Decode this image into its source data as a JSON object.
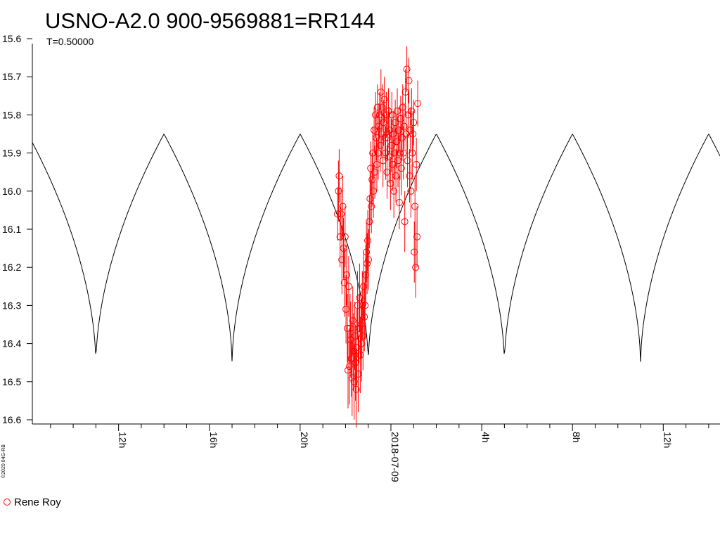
{
  "chart_data": {
    "type": "scatter",
    "title": "USNO-A2.0 900-9569881=RR144",
    "subtitle": "T=0.50000",
    "copyright": "©2020 04G-RB",
    "y_axis": {
      "range": [
        15.6,
        16.6
      ],
      "inverted": true,
      "tick_values": [
        15.6,
        15.7,
        15.8,
        15.9,
        16.0,
        16.1,
        16.2,
        16.3,
        16.4,
        16.5,
        16.6
      ],
      "tick_labels": [
        "15.6",
        "15.7",
        "15.8",
        "15.9",
        "16.0",
        "16.1",
        "16.2",
        "16.3",
        "16.4",
        "16.5",
        "16.6"
      ]
    },
    "x_axis": {
      "unit": "hours from 2018-07-09 00:00",
      "range": [
        -15.8,
        14.5
      ],
      "major_ticks": [
        {
          "x": -12,
          "label": "12h"
        },
        {
          "x": -8,
          "label": "16h"
        },
        {
          "x": -4,
          "label": "20h"
        },
        {
          "x": 0,
          "label": "2018-07-09"
        },
        {
          "x": 4,
          "label": "4h"
        },
        {
          "x": 8,
          "label": "8h"
        },
        {
          "x": 12,
          "label": "12h"
        }
      ],
      "minor_ticks": [
        -15,
        -14,
        -13,
        -11,
        -10,
        -9,
        -7,
        -6,
        -5,
        -3,
        -2,
        -1,
        1,
        2,
        3,
        5,
        6,
        7,
        9,
        10,
        11,
        13,
        14
      ]
    },
    "model": {
      "name": "model light curve",
      "color": "#000000",
      "period_hours": 6.0,
      "x_min_hours": [
        -13.0,
        -7.0,
        -1.0,
        5.0,
        11.0
      ],
      "mag_max": 15.85,
      "mag_min": 16.455
    },
    "series": [
      {
        "name": "Rene Roy",
        "color": "#ff0000",
        "marker": "open-circle",
        "columns": [
          "x_hours",
          "mag",
          "err"
        ],
        "points": [
          [
            -2.35,
            16.06,
            0.07
          ],
          [
            -2.31,
            16.0,
            0.08
          ],
          [
            -2.28,
            15.96,
            0.07
          ],
          [
            -2.24,
            16.12,
            0.08
          ],
          [
            -2.2,
            16.06,
            0.07
          ],
          [
            -2.16,
            16.18,
            0.09
          ],
          [
            -2.12,
            16.04,
            0.08
          ],
          [
            -2.09,
            16.15,
            0.08
          ],
          [
            -2.05,
            16.24,
            0.09
          ],
          [
            -2.02,
            16.12,
            0.08
          ],
          [
            -1.98,
            16.31,
            0.09
          ],
          [
            -1.95,
            16.22,
            0.08
          ],
          [
            -1.92,
            16.36,
            0.09
          ],
          [
            -1.89,
            16.47,
            0.1
          ],
          [
            -1.86,
            16.25,
            0.08
          ],
          [
            -1.83,
            16.46,
            0.1
          ],
          [
            -1.8,
            16.36,
            0.09
          ],
          [
            -1.77,
            16.39,
            0.1
          ],
          [
            -1.74,
            16.44,
            0.1
          ],
          [
            -1.71,
            16.49,
            0.1
          ],
          [
            -1.68,
            16.34,
            0.09
          ],
          [
            -1.65,
            16.42,
            0.1
          ],
          [
            -1.62,
            16.5,
            0.1
          ],
          [
            -1.59,
            16.38,
            0.09
          ],
          [
            -1.56,
            16.45,
            0.1
          ],
          [
            -1.53,
            16.52,
            0.1
          ],
          [
            -1.5,
            16.41,
            0.1
          ],
          [
            -1.47,
            16.3,
            0.09
          ],
          [
            -1.44,
            16.48,
            0.1
          ],
          [
            -1.41,
            16.36,
            0.09
          ],
          [
            -1.38,
            16.28,
            0.09
          ],
          [
            -1.35,
            16.43,
            0.1
          ],
          [
            -1.32,
            16.35,
            0.09
          ],
          [
            -1.29,
            16.4,
            0.1
          ],
          [
            -1.26,
            16.3,
            0.09
          ],
          [
            -1.23,
            16.38,
            0.09
          ],
          [
            -1.2,
            16.25,
            0.09
          ],
          [
            -1.17,
            16.33,
            0.09
          ],
          [
            -1.14,
            16.3,
            0.09
          ],
          [
            -1.11,
            16.22,
            0.08
          ],
          [
            -1.08,
            16.16,
            0.08
          ],
          [
            -1.05,
            16.19,
            0.08
          ],
          [
            -1.02,
            16.13,
            0.08
          ],
          [
            -0.99,
            16.18,
            0.08
          ],
          [
            -0.95,
            16.08,
            0.07
          ],
          [
            -0.92,
            16.02,
            0.07
          ],
          [
            -0.89,
            15.94,
            0.07
          ],
          [
            -0.86,
            16.04,
            0.07
          ],
          [
            -0.83,
            15.97,
            0.07
          ],
          [
            -0.8,
            15.9,
            0.07
          ],
          [
            -0.77,
            16.0,
            0.07
          ],
          [
            -0.74,
            15.84,
            0.06
          ],
          [
            -0.71,
            15.95,
            0.07
          ],
          [
            -0.68,
            15.8,
            0.06
          ],
          [
            -0.65,
            15.86,
            0.06
          ],
          [
            -0.62,
            15.93,
            0.07
          ],
          [
            -0.59,
            15.78,
            0.06
          ],
          [
            -0.56,
            15.9,
            0.07
          ],
          [
            -0.53,
            15.83,
            0.06
          ],
          [
            -0.5,
            15.8,
            0.06
          ],
          [
            -0.47,
            15.88,
            0.07
          ],
          [
            -0.44,
            15.74,
            0.06
          ],
          [
            -0.41,
            15.85,
            0.06
          ],
          [
            -0.38,
            15.78,
            0.06
          ],
          [
            -0.35,
            15.92,
            0.07
          ],
          [
            -0.32,
            15.82,
            0.06
          ],
          [
            -0.29,
            15.76,
            0.06
          ],
          [
            -0.26,
            15.86,
            0.06
          ],
          [
            -0.23,
            15.9,
            0.07
          ],
          [
            -0.2,
            15.8,
            0.06
          ],
          [
            -0.17,
            15.95,
            0.07
          ],
          [
            -0.14,
            15.86,
            0.06
          ],
          [
            -0.11,
            15.79,
            0.06
          ],
          [
            -0.08,
            15.91,
            0.07
          ],
          [
            -0.05,
            15.84,
            0.06
          ],
          [
            -0.02,
            15.98,
            0.07
          ],
          [
            0.01,
            15.88,
            0.07
          ],
          [
            0.04,
            15.8,
            0.06
          ],
          [
            0.07,
            15.93,
            0.07
          ],
          [
            0.1,
            15.85,
            0.06
          ],
          [
            0.13,
            16.0,
            0.07
          ],
          [
            0.16,
            15.9,
            0.07
          ],
          [
            0.19,
            15.82,
            0.06
          ],
          [
            0.22,
            15.96,
            0.07
          ],
          [
            0.25,
            15.87,
            0.07
          ],
          [
            0.28,
            15.79,
            0.06
          ],
          [
            0.31,
            15.92,
            0.07
          ],
          [
            0.34,
            15.84,
            0.06
          ],
          [
            0.37,
            16.03,
            0.07
          ],
          [
            0.4,
            15.9,
            0.07
          ],
          [
            0.43,
            15.81,
            0.06
          ],
          [
            0.46,
            15.94,
            0.07
          ],
          [
            0.49,
            15.86,
            0.06
          ],
          [
            0.52,
            15.78,
            0.06
          ],
          [
            0.55,
            15.9,
            0.07
          ],
          [
            0.58,
            15.83,
            0.06
          ],
          [
            0.61,
            16.08,
            0.08
          ],
          [
            0.64,
            15.74,
            0.06
          ],
          [
            0.67,
            15.85,
            0.06
          ],
          [
            0.7,
            15.68,
            0.06
          ],
          [
            0.73,
            15.92,
            0.07
          ],
          [
            0.76,
            15.8,
            0.06
          ],
          [
            0.79,
            15.71,
            0.06
          ],
          [
            0.82,
            15.96,
            0.07
          ],
          [
            0.85,
            15.84,
            0.06
          ],
          [
            0.88,
            16.0,
            0.07
          ],
          [
            0.91,
            15.79,
            0.06
          ],
          [
            0.94,
            15.9,
            0.07
          ],
          [
            0.97,
            15.85,
            0.06
          ],
          [
            1.0,
            15.82,
            0.06
          ],
          [
            1.03,
            16.16,
            0.08
          ],
          [
            1.06,
            16.04,
            0.08
          ],
          [
            1.09,
            16.2,
            0.08
          ],
          [
            1.12,
            15.93,
            0.07
          ],
          [
            1.15,
            16.12,
            0.08
          ],
          [
            1.18,
            15.77,
            0.06
          ]
        ]
      }
    ],
    "legend": {
      "position": "bottom-left",
      "entries": [
        {
          "label": "Rene Roy",
          "color": "#ff0000",
          "marker": "open-circle"
        }
      ]
    }
  }
}
